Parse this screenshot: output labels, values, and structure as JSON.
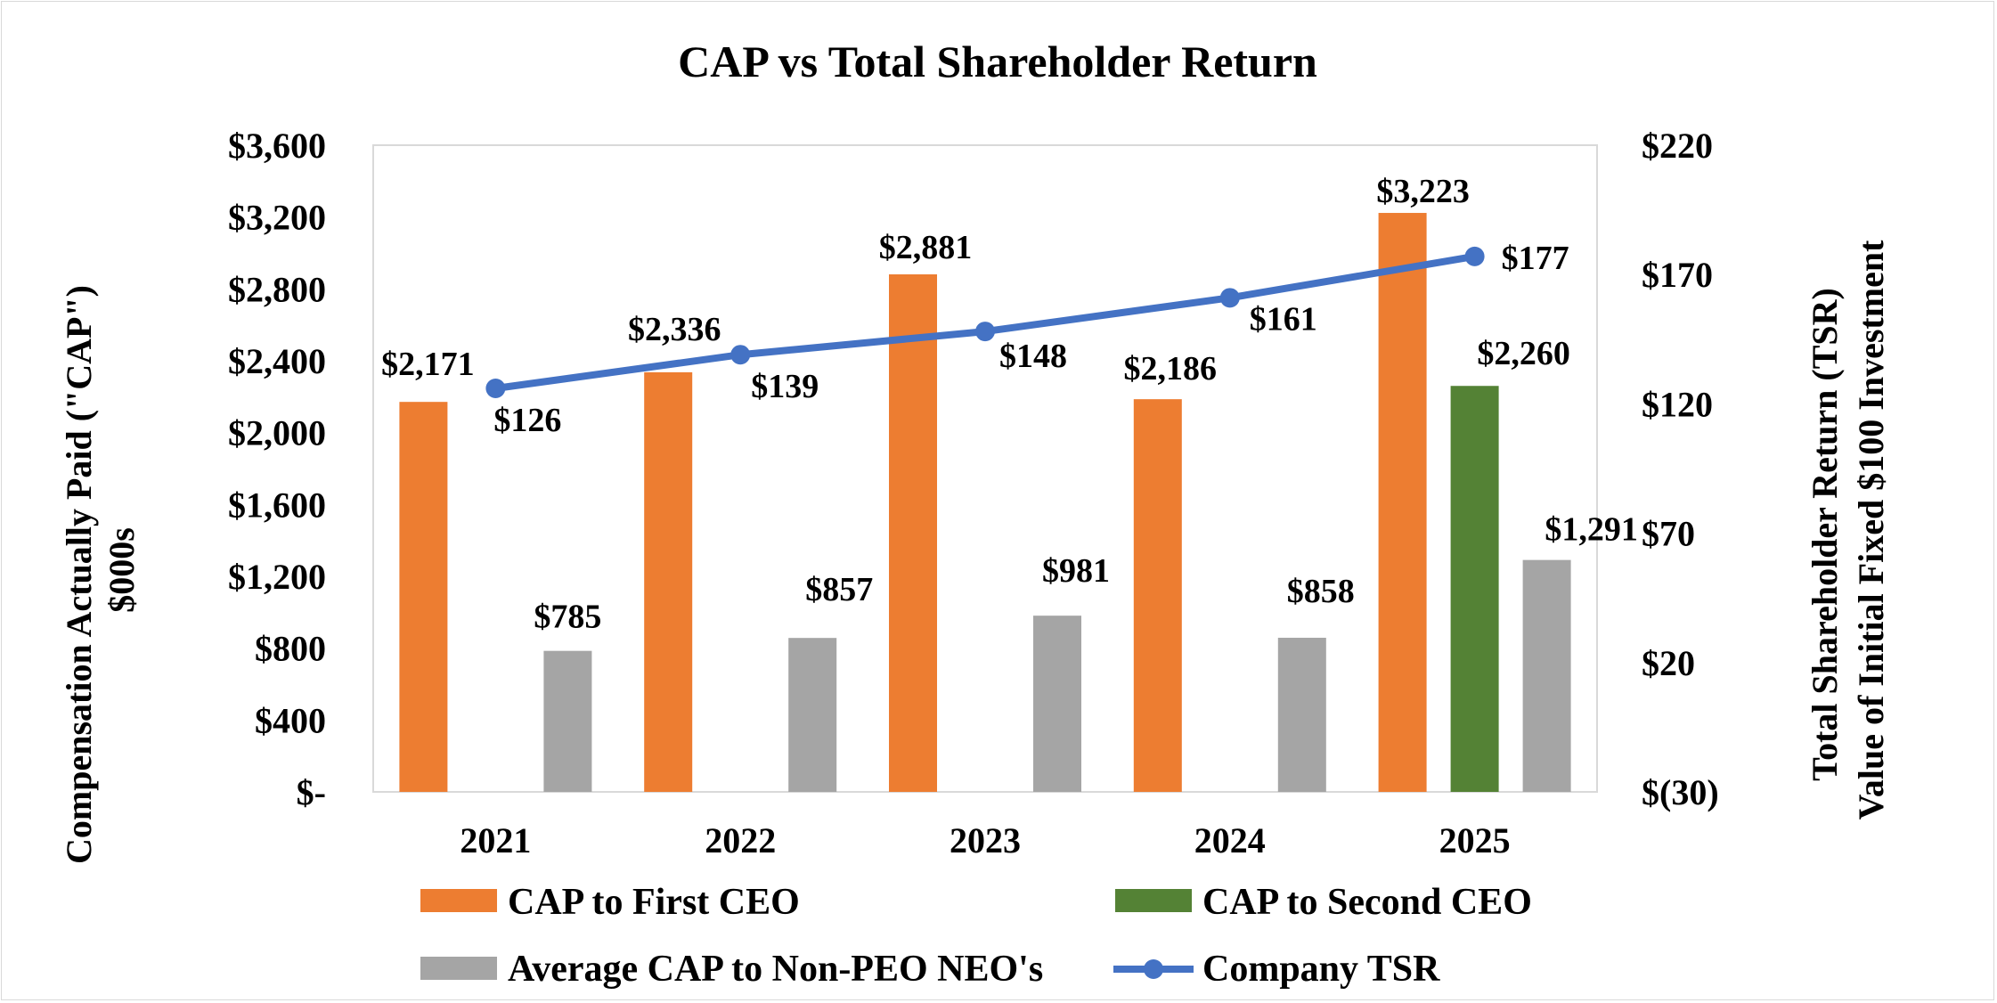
{
  "chart_data": {
    "type": "bar",
    "title": "CAP vs Total Shareholder Return",
    "categories": [
      "2021",
      "2022",
      "2023",
      "2024",
      "2025"
    ],
    "ylabel": [
      "Compensation Actually Paid (\"CAP\")",
      "$000s"
    ],
    "y2label": [
      "Total Shareholder Return (TSR)",
      "Value of Initial Fixed $100 Investment"
    ],
    "ylim": [
      0,
      3600
    ],
    "y2lim": [
      -30,
      220
    ],
    "yticks": [
      0,
      400,
      800,
      1200,
      1600,
      2000,
      2400,
      2800,
      3200,
      3600
    ],
    "ytick_labels": [
      "$-",
      "$400",
      "$800",
      "$1,200",
      "$1,600",
      "$2,000",
      "$2,400",
      "$2,800",
      "$3,200",
      "$3,600"
    ],
    "y2ticks": [
      -30,
      20,
      70,
      120,
      170,
      220
    ],
    "y2tick_labels": [
      "$(30)",
      "$20",
      "$70",
      "$120",
      "$170",
      "$220"
    ],
    "series": [
      {
        "name": "CAP to First CEO",
        "kind": "bar",
        "axis": "left",
        "color": "#ED7D31",
        "values": [
          2171,
          2336,
          2881,
          2186,
          3223
        ],
        "labels": [
          "$2,171",
          "$2,336",
          "$2,881",
          "$2,186",
          "$3,223"
        ]
      },
      {
        "name": "CAP to Second CEO",
        "kind": "bar",
        "axis": "left",
        "color": "#548235",
        "values": [
          null,
          null,
          null,
          null,
          2260
        ],
        "labels": [
          null,
          null,
          null,
          null,
          "$2,260"
        ]
      },
      {
        "name": "Average CAP to Non-PEO NEO's",
        "kind": "bar",
        "axis": "left",
        "color": "#A5A5A5",
        "values": [
          785,
          857,
          981,
          858,
          1291
        ],
        "labels": [
          "$785",
          "$857",
          "$981",
          "$858",
          "$1,291"
        ]
      },
      {
        "name": "Company TSR",
        "kind": "line",
        "axis": "right",
        "color": "#4472C4",
        "values": [
          126,
          139,
          148,
          161,
          177
        ],
        "labels": [
          "$126",
          "$139",
          "$148",
          "$161",
          "$177"
        ]
      }
    ],
    "legend": {
      "placement": "bottom",
      "items": [
        "CAP to First CEO",
        "CAP to Second CEO",
        "Average CAP to Non-PEO NEO's",
        "Company TSR"
      ]
    },
    "grid": false
  }
}
